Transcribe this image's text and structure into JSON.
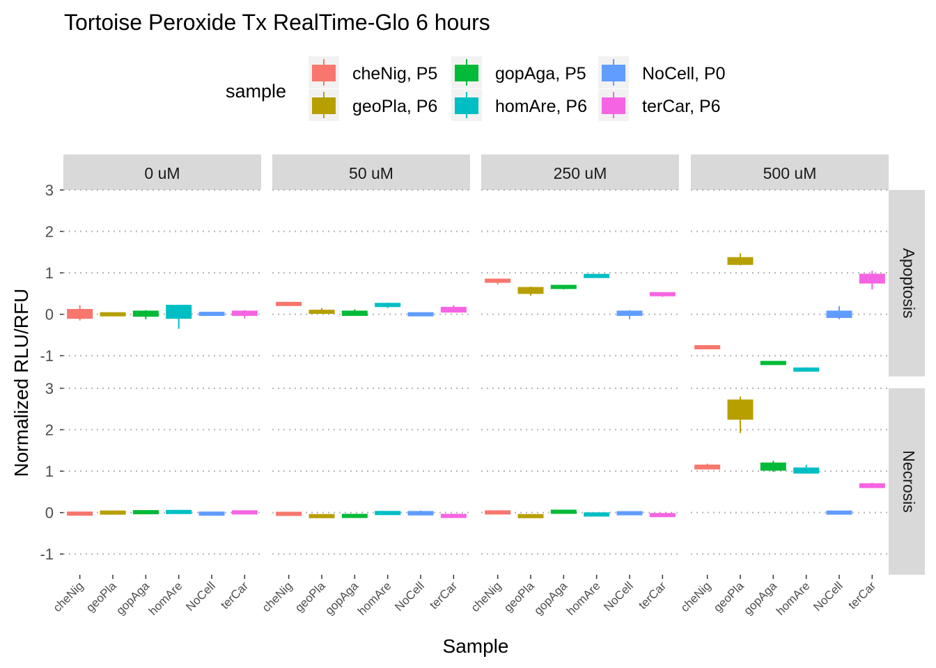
{
  "chart_data": {
    "type": "boxplot",
    "title": "Tortoise Peroxide Tx RealTime-Glo 6 hours",
    "xlabel": "Sample",
    "ylabel": "Normalized RLU/RFU",
    "ylim": [
      -1.5,
      3
    ],
    "y_ticks": [
      -1,
      0,
      1,
      2,
      3
    ],
    "grid": "dotted horizontal major gridlines",
    "legend": {
      "title": "sample",
      "placement": "top",
      "entries": [
        {
          "label": "cheNig, P5",
          "color": "#F8766D"
        },
        {
          "label": "gopAga, P5",
          "color": "#00BA38"
        },
        {
          "label": "NoCell, P0",
          "color": "#619CFF"
        },
        {
          "label": "geoPla, P6",
          "color": "#B79F00"
        },
        {
          "label": "homAre, P6",
          "color": "#00BFC4"
        },
        {
          "label": "terCar, P6",
          "color": "#F564E3"
        }
      ]
    },
    "categories": [
      "cheNig",
      "geoPla",
      "gopAga",
      "homAre",
      "NoCell",
      "terCar"
    ],
    "colors": {
      "cheNig": "#F8766D",
      "geoPla": "#B79F00",
      "gopAga": "#00BA38",
      "homAre": "#00BFC4",
      "NoCell": "#619CFF",
      "terCar": "#F564E3"
    },
    "facet_columns": [
      "0 uM",
      "50 uM",
      "250 uM",
      "500 uM"
    ],
    "facet_rows": [
      "Apoptosis",
      "Necrosis"
    ],
    "boxes": {
      "Apoptosis": {
        "0 uM": {
          "cheNig": [
            -0.15,
            -0.1,
            0.0,
            0.12,
            0.22
          ],
          "geoPla": [
            -0.02,
            -0.02,
            0.0,
            0.02,
            0.02
          ],
          "gopAga": [
            -0.12,
            -0.05,
            0.0,
            0.08,
            0.1
          ],
          "homAre": [
            -0.35,
            -0.1,
            0.1,
            0.22,
            0.22
          ],
          "NoCell": [
            -0.02,
            -0.02,
            0.0,
            0.04,
            0.04
          ],
          "terCar": [
            -0.1,
            -0.03,
            0.0,
            0.08,
            0.1
          ]
        },
        "50 uM": {
          "cheNig": [
            0.22,
            0.22,
            0.25,
            0.28,
            0.28
          ],
          "geoPla": [
            0.02,
            0.02,
            0.05,
            0.1,
            0.15
          ],
          "gopAga": [
            -0.03,
            -0.03,
            0.02,
            0.08,
            0.12
          ],
          "homAre": [
            0.15,
            0.2,
            0.22,
            0.25,
            0.28
          ],
          "NoCell": [
            -0.02,
            -0.02,
            0.0,
            0.02,
            0.02
          ],
          "terCar": [
            0.05,
            0.05,
            0.1,
            0.17,
            0.22
          ]
        },
        "250 uM": {
          "cheNig": [
            0.72,
            0.77,
            0.8,
            0.85,
            0.85
          ],
          "geoPla": [
            0.45,
            0.5,
            0.55,
            0.65,
            0.67
          ],
          "gopAga": [
            0.6,
            0.62,
            0.65,
            0.7,
            0.7
          ],
          "homAre": [
            0.88,
            0.9,
            0.92,
            0.95,
            0.95
          ],
          "NoCell": [
            -0.12,
            -0.03,
            0.0,
            0.08,
            0.1
          ],
          "terCar": [
            0.42,
            0.45,
            0.48,
            0.52,
            0.52
          ]
        },
        "500 uM": {
          "cheNig": [
            -0.83,
            -0.82,
            -0.8,
            -0.77,
            -0.76
          ],
          "geoPla": [
            1.18,
            1.2,
            1.3,
            1.37,
            1.47
          ],
          "gopAga": [
            -1.22,
            -1.21,
            -1.18,
            -1.14,
            -1.13
          ],
          "homAre": [
            -1.37,
            -1.36,
            -1.33,
            -1.31,
            -1.28
          ],
          "NoCell": [
            -0.12,
            -0.08,
            0.0,
            0.08,
            0.2
          ],
          "terCar": [
            0.6,
            0.75,
            0.88,
            0.97,
            1.05
          ]
        }
      },
      "Necrosis": {
        "0 uM": {
          "cheNig": [
            -0.05,
            -0.05,
            -0.02,
            0.0,
            0.0
          ],
          "geoPla": [
            -0.02,
            -0.02,
            0.0,
            0.02,
            0.02
          ],
          "gopAga": [
            -0.02,
            -0.02,
            0.0,
            0.04,
            0.04
          ],
          "homAre": [
            -0.02,
            -0.02,
            0.02,
            0.05,
            0.05
          ],
          "NoCell": [
            -0.05,
            -0.05,
            -0.02,
            0.0,
            0.0
          ],
          "terCar": [
            -0.02,
            -0.02,
            0.0,
            0.03,
            0.03
          ]
        },
        "50 uM": {
          "cheNig": [
            -0.06,
            -0.06,
            -0.03,
            0.0,
            0.0
          ],
          "geoPla": [
            -0.12,
            -0.12,
            -0.08,
            -0.05,
            -0.05
          ],
          "gopAga": [
            -0.12,
            -0.12,
            -0.08,
            -0.04,
            -0.04
          ],
          "homAre": [
            -0.05,
            -0.05,
            -0.02,
            0.03,
            0.03
          ],
          "NoCell": [
            -0.06,
            -0.06,
            -0.02,
            0.03,
            0.05
          ],
          "terCar": [
            -0.12,
            -0.12,
            -0.08,
            -0.04,
            -0.04
          ]
        },
        "250 uM": {
          "cheNig": [
            -0.02,
            -0.02,
            0.0,
            0.03,
            0.03
          ],
          "geoPla": [
            -0.12,
            -0.12,
            -0.08,
            -0.05,
            -0.05
          ],
          "gopAga": [
            0.0,
            0.0,
            0.02,
            0.04,
            0.04
          ],
          "homAre": [
            -0.07,
            -0.07,
            -0.04,
            -0.02,
            -0.02
          ],
          "NoCell": [
            -0.05,
            -0.05,
            -0.02,
            0.02,
            0.02
          ],
          "terCar": [
            -0.1,
            -0.1,
            -0.06,
            -0.02,
            -0.02
          ]
        },
        "500 uM": {
          "cheNig": [
            1.05,
            1.05,
            1.1,
            1.15,
            1.18
          ],
          "geoPla": [
            1.92,
            2.25,
            2.5,
            2.72,
            2.8
          ],
          "gopAga": [
            0.98,
            1.02,
            1.1,
            1.2,
            1.25
          ],
          "homAre": [
            0.95,
            0.95,
            1.02,
            1.08,
            1.15
          ],
          "NoCell": [
            -0.02,
            -0.02,
            0.0,
            0.02,
            0.02
          ],
          "terCar": [
            0.6,
            0.6,
            0.64,
            0.7,
            0.72
          ]
        }
      }
    }
  }
}
